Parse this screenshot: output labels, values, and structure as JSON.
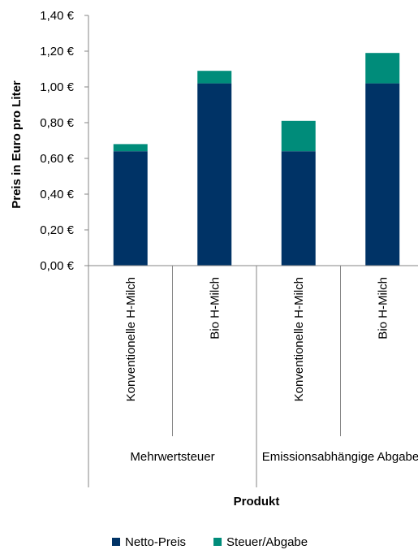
{
  "chart_data": {
    "type": "bar",
    "stacked": true,
    "categories": [
      "Konventionelle H-Milch",
      "Bio H-Milch",
      "Konventionelle H-Milch",
      "Bio H-Milch"
    ],
    "groups": [
      {
        "label": "Mehrwertsteuer",
        "categories": [
          0,
          1
        ]
      },
      {
        "label": "Emissionsabhängige Abgabe",
        "categories": [
          2,
          3
        ]
      }
    ],
    "series": [
      {
        "name": "Netto-Preis",
        "color": "#003366",
        "values": [
          0.64,
          1.02,
          0.64,
          1.02
        ]
      },
      {
        "name": "Steuer/Abgabe",
        "color": "#008C7A",
        "values": [
          0.04,
          0.07,
          0.17,
          0.17
        ]
      }
    ],
    "ylim": [
      0,
      1.4
    ],
    "yticks": [
      "0,00 €",
      "0,20 €",
      "0,40 €",
      "0,60 €",
      "0,80 €",
      "1,00 €",
      "1,20 €",
      "1,40 €"
    ],
    "ylabel": "Preis in Euro pro Liter",
    "xlabel": "Produkt",
    "legend_position": "bottom",
    "grid": false
  }
}
